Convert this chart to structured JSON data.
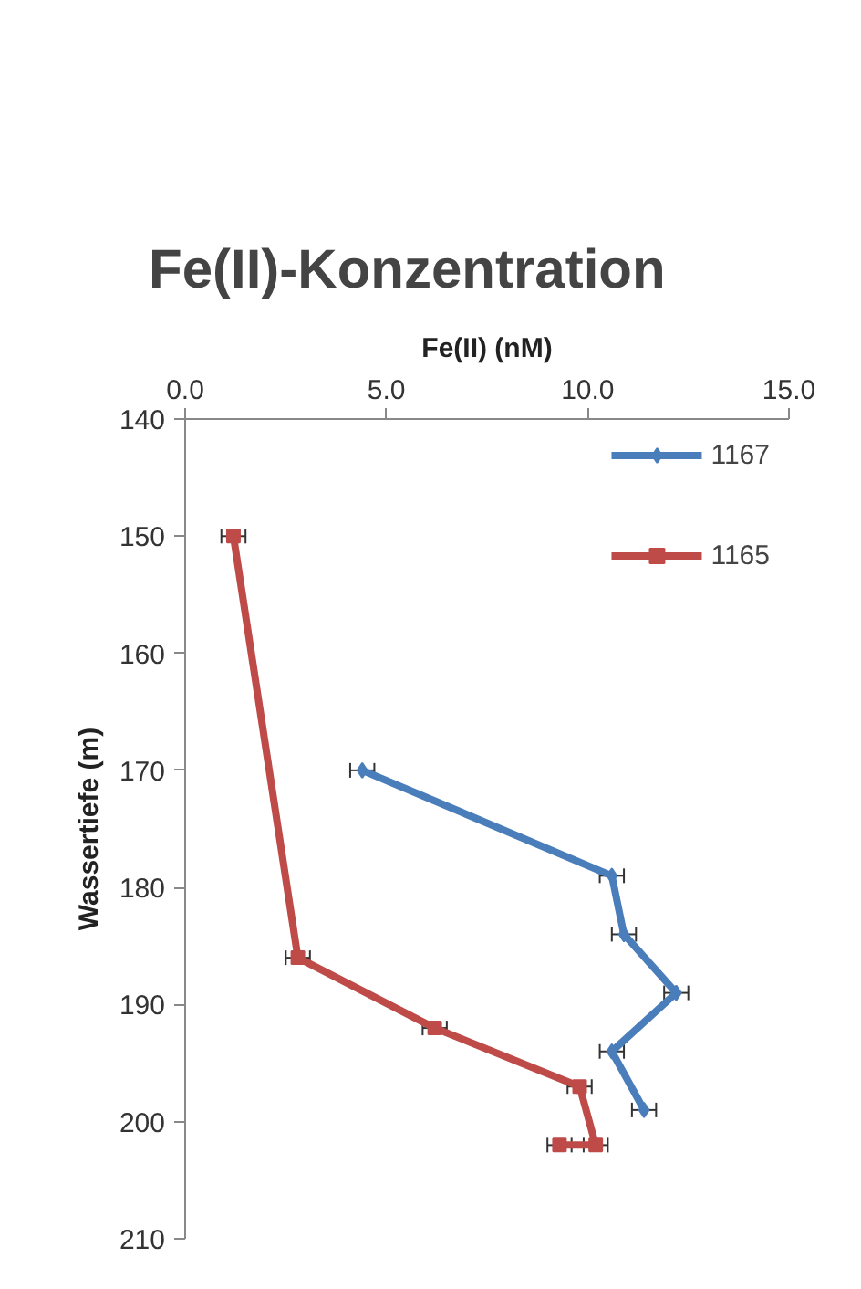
{
  "chart_data": {
    "type": "line",
    "title": "Fe(II)-Konzentration",
    "xlabel": "Fe(II) (nM)",
    "ylabel": "Wassertiefe (m)",
    "xlim": [
      0,
      15
    ],
    "xticks": [
      {
        "value": 0,
        "label": "0.0"
      },
      {
        "value": 5,
        "label": "5.0"
      },
      {
        "value": 10,
        "label": "10.0"
      },
      {
        "value": 15,
        "label": "15.0"
      }
    ],
    "ylim": [
      210,
      140
    ],
    "yticks": [
      140,
      150,
      160,
      170,
      180,
      190,
      200,
      210
    ],
    "grid": false,
    "legend": "top right",
    "line_style": "solid",
    "series": [
      {
        "name": "1167",
        "color": "#4a7ebb",
        "marker": "diamond",
        "x": [
          4.4,
          10.6,
          10.9,
          12.2,
          10.6,
          11.4
        ],
        "values": [
          170,
          179,
          184,
          189,
          194,
          199
        ],
        "xerrors": [
          0.3,
          0.3,
          0.3,
          0.3,
          0.3,
          0.3
        ]
      },
      {
        "name": "1165",
        "color": "#be4b48",
        "marker": "square",
        "x": [
          1.2,
          2.8,
          6.2,
          9.8,
          10.2,
          9.3
        ],
        "values": [
          150,
          186,
          192,
          197,
          202,
          202
        ],
        "xerrors": [
          0.3,
          0.3,
          0.3,
          0.3,
          0.3,
          0.3
        ]
      }
    ]
  }
}
